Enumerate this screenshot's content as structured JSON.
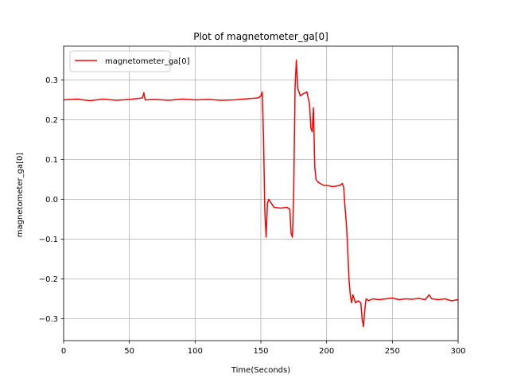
{
  "chart_data": {
    "type": "line",
    "title": "Plot of magnetometer_ga[0]",
    "xlabel": "Time(Seconds)",
    "ylabel": "magnetometer_ga[0]",
    "xlim": [
      0,
      300
    ],
    "ylim": [
      -0.355,
      0.385
    ],
    "x_ticks": [
      0,
      50,
      100,
      150,
      200,
      250,
      300
    ],
    "x_tick_labels": [
      "0",
      "50",
      "100",
      "150",
      "200",
      "250",
      "300"
    ],
    "y_ticks": [
      -0.3,
      -0.2,
      -0.1,
      0.0,
      0.1,
      0.2,
      0.3
    ],
    "y_tick_labels": [
      "−0.3",
      "−0.2",
      "−0.1",
      "0.0",
      "0.1",
      "0.2",
      "0.3"
    ],
    "grid": true,
    "legend_position": "top-left",
    "series": [
      {
        "name": "magnetometer_ga[0]",
        "color": "#ff0000",
        "x": [
          0,
          10,
          20,
          30,
          40,
          50,
          60,
          61,
          62,
          70,
          80,
          90,
          100,
          110,
          120,
          130,
          140,
          148,
          150,
          151,
          152,
          153,
          154,
          155,
          156,
          160,
          165,
          170,
          172,
          173,
          174,
          175,
          176,
          177,
          178,
          180,
          182,
          185,
          187,
          188,
          189,
          190,
          191,
          192,
          193,
          195,
          198,
          200,
          205,
          210,
          212,
          213,
          214,
          215,
          216,
          217,
          218,
          219,
          220,
          222,
          224,
          226,
          227,
          228,
          229,
          230,
          232,
          235,
          240,
          245,
          250,
          255,
          260,
          265,
          270,
          275,
          278,
          280,
          285,
          290,
          295,
          300
        ],
        "y": [
          0.25,
          0.252,
          0.248,
          0.252,
          0.249,
          0.251,
          0.255,
          0.268,
          0.25,
          0.251,
          0.249,
          0.252,
          0.25,
          0.251,
          0.249,
          0.25,
          0.253,
          0.255,
          0.26,
          0.27,
          0.16,
          -0.03,
          -0.095,
          -0.01,
          0.0,
          -0.02,
          -0.022,
          -0.02,
          -0.025,
          -0.085,
          -0.095,
          0.02,
          0.28,
          0.35,
          0.28,
          0.26,
          0.265,
          0.27,
          0.24,
          0.18,
          0.17,
          0.23,
          0.08,
          0.05,
          0.045,
          0.04,
          0.035,
          0.035,
          0.032,
          0.035,
          0.04,
          0.03,
          -0.02,
          -0.06,
          -0.12,
          -0.2,
          -0.24,
          -0.26,
          -0.24,
          -0.26,
          -0.255,
          -0.26,
          -0.3,
          -0.32,
          -0.28,
          -0.25,
          -0.255,
          -0.25,
          -0.252,
          -0.25,
          -0.248,
          -0.252,
          -0.25,
          -0.251,
          -0.249,
          -0.252,
          -0.24,
          -0.25,
          -0.252,
          -0.25,
          -0.255,
          -0.252
        ]
      }
    ]
  }
}
